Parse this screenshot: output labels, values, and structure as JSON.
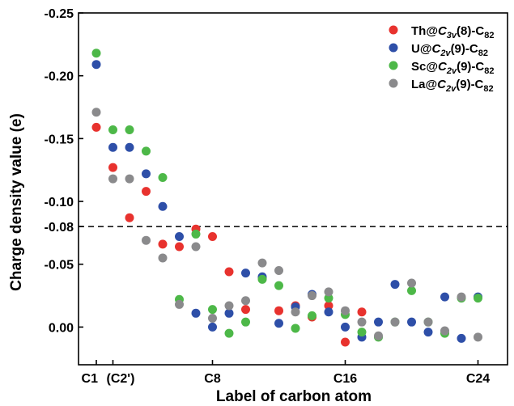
{
  "chart_data": {
    "type": "scatter",
    "xlabel": "Label of carbon atom",
    "ylabel": "Charge density value (e)",
    "xlim": [
      0,
      25
    ],
    "ylim": [
      0.03,
      -0.25
    ],
    "y_ticks": [
      {
        "value": -0.25,
        "label": "-0.25"
      },
      {
        "value": -0.2,
        "label": "-0.20"
      },
      {
        "value": -0.15,
        "label": "-0.15"
      },
      {
        "value": -0.1,
        "label": "-0.10"
      },
      {
        "value": -0.08,
        "label": "-0.08"
      },
      {
        "value": -0.05,
        "label": "-0.05"
      },
      {
        "value": 0.0,
        "label": "0.00"
      }
    ],
    "x_ticks": [
      {
        "value": 1,
        "label": "C1"
      },
      {
        "value": 2,
        "label": "(C2')"
      },
      {
        "value": 8,
        "label": "C8"
      },
      {
        "value": 16,
        "label": "C16"
      },
      {
        "value": 24,
        "label": "C24"
      }
    ],
    "reference_line": {
      "y": -0.08,
      "style": "dashed"
    },
    "legend_position": "top-right",
    "legend": [
      {
        "prefix": "Th@",
        "italic": "C",
        "sub": "3v",
        "suffix1": "(8)-C",
        "sub2": "82",
        "color": "#e8322e"
      },
      {
        "prefix": "U@",
        "italic": "C",
        "sub": "2v",
        "suffix1": "(9)-C",
        "sub2": "82",
        "color": "#2e4fa8"
      },
      {
        "prefix": "Sc@",
        "italic": "C",
        "sub": "2v",
        "suffix1": "(9)-C",
        "sub2": "82",
        "color": "#4db848"
      },
      {
        "prefix": "La@",
        "italic": "C",
        "sub": "2v",
        "suffix1": "(9)-C",
        "sub2": "82",
        "color": "#8a8a8c"
      }
    ],
    "series": [
      {
        "name": "Th@C3v(8)-C82",
        "color": "#e8322e",
        "points": [
          [
            1,
            -0.159
          ],
          [
            2,
            -0.127
          ],
          [
            3,
            -0.087
          ],
          [
            4,
            -0.108
          ],
          [
            5,
            -0.066
          ],
          [
            6,
            -0.064
          ],
          [
            7,
            -0.078
          ],
          [
            8,
            -0.072
          ],
          [
            9,
            -0.044
          ],
          [
            10,
            -0.014
          ],
          [
            11,
            -0.039
          ],
          [
            12,
            -0.013
          ],
          [
            13,
            -0.017
          ],
          [
            14,
            -0.008
          ],
          [
            15,
            -0.017
          ],
          [
            16,
            0.012
          ],
          [
            17,
            -0.012
          ]
        ]
      },
      {
        "name": "U@C2v(9)-C82",
        "color": "#2e4fa8",
        "points": [
          [
            1,
            -0.209
          ],
          [
            2,
            -0.143
          ],
          [
            3,
            -0.143
          ],
          [
            4,
            -0.122
          ],
          [
            5,
            -0.096
          ],
          [
            6,
            -0.072
          ],
          [
            7,
            -0.011
          ],
          [
            8,
            0.0
          ],
          [
            9,
            -0.011
          ],
          [
            10,
            -0.043
          ],
          [
            11,
            -0.04
          ],
          [
            12,
            -0.003
          ],
          [
            13,
            -0.016
          ],
          [
            14,
            -0.026
          ],
          [
            15,
            -0.012
          ],
          [
            16,
            0.0
          ],
          [
            17,
            0.008
          ],
          [
            18,
            -0.004
          ],
          [
            19,
            -0.034
          ],
          [
            20,
            -0.004
          ],
          [
            21,
            0.004
          ],
          [
            22,
            -0.024
          ],
          [
            23,
            0.009
          ],
          [
            24,
            -0.024
          ]
        ]
      },
      {
        "name": "Sc@C2v(9)-C82",
        "color": "#4db848",
        "points": [
          [
            1,
            -0.218
          ],
          [
            2,
            -0.157
          ],
          [
            3,
            -0.157
          ],
          [
            4,
            -0.14
          ],
          [
            5,
            -0.119
          ],
          [
            6,
            -0.022
          ],
          [
            7,
            -0.074
          ],
          [
            8,
            -0.014
          ],
          [
            9,
            0.005
          ],
          [
            10,
            -0.004
          ],
          [
            11,
            -0.038
          ],
          [
            12,
            -0.033
          ],
          [
            13,
            0.001
          ],
          [
            14,
            -0.009
          ],
          [
            15,
            -0.023
          ],
          [
            16,
            -0.01
          ],
          [
            17,
            0.004
          ],
          [
            18,
            0.008
          ],
          [
            19,
            -0.004
          ],
          [
            20,
            -0.029
          ],
          [
            21,
            -0.004
          ],
          [
            22,
            0.005
          ],
          [
            23,
            -0.023
          ],
          [
            24,
            -0.023
          ]
        ]
      },
      {
        "name": "La@C2v(9)-C82",
        "color": "#8a8a8c",
        "points": [
          [
            1,
            -0.171
          ],
          [
            2,
            -0.118
          ],
          [
            3,
            -0.118
          ],
          [
            4,
            -0.069
          ],
          [
            5,
            -0.055
          ],
          [
            6,
            -0.018
          ],
          [
            7,
            -0.064
          ],
          [
            8,
            -0.007
          ],
          [
            9,
            -0.017
          ],
          [
            10,
            -0.021
          ],
          [
            11,
            -0.051
          ],
          [
            12,
            -0.045
          ],
          [
            13,
            -0.012
          ],
          [
            14,
            -0.025
          ],
          [
            15,
            -0.028
          ],
          [
            16,
            -0.013
          ],
          [
            17,
            -0.004
          ],
          [
            18,
            0.007
          ],
          [
            19,
            -0.004
          ],
          [
            20,
            -0.035
          ],
          [
            21,
            -0.004
          ],
          [
            22,
            0.003
          ],
          [
            23,
            -0.024
          ],
          [
            24,
            0.008
          ]
        ]
      }
    ]
  }
}
